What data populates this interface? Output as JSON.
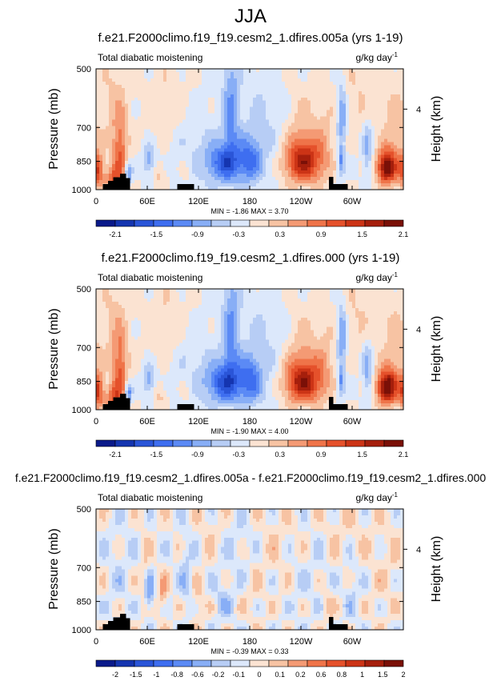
{
  "figure_title": "JJA",
  "chart_data": [
    {
      "type": "heatmap",
      "title": "f.e21.F2000climo.f19_f19.cesm2_1.dfires.005a (yrs 1-19)",
      "subtitle_left": "Total diabatic moistening",
      "units": "g/kg day",
      "units_exp": "-1",
      "ylabel": "Pressure (mb)",
      "ylabel_right": "Height (km)",
      "y_ticks": [
        "500",
        "700",
        "850",
        "1000"
      ],
      "y_right_ticks": [
        "4"
      ],
      "x_ticks": [
        "0",
        "60E",
        "120E",
        "180",
        "120W",
        "60W"
      ],
      "xlim": [
        0,
        360
      ],
      "ylim": [
        1000,
        500
      ],
      "stats": "MIN = -1.86  MAX =  3.70",
      "min": -1.86,
      "max": 3.7,
      "levels": [
        -2.4,
        -2.1,
        -1.8,
        -1.5,
        -1.2,
        -0.9,
        -0.6,
        -0.3,
        0,
        0.3,
        0.6,
        0.9,
        1.2,
        1.5,
        1.8,
        2.1,
        2.4
      ],
      "level_labels": [
        "-2.1",
        "-1.5",
        "-0.9",
        "-0.3",
        "0.3",
        "0.9",
        "1.5",
        "2.1"
      ],
      "scale": 1.0,
      "blobs": [
        {
          "lon": 150,
          "p": 860,
          "sx": 14,
          "sy": 70,
          "a": -1.4
        },
        {
          "lon": 180,
          "p": 850,
          "sx": 10,
          "sy": 80,
          "a": -1.1
        },
        {
          "lon": 158,
          "p": 640,
          "sx": 7,
          "sy": 160,
          "a": -0.9
        },
        {
          "lon": 195,
          "p": 720,
          "sx": 18,
          "sy": 170,
          "a": -0.35
        },
        {
          "lon": 112,
          "p": 800,
          "sx": 22,
          "sy": 150,
          "a": -0.35
        },
        {
          "lon": 243,
          "p": 855,
          "sx": 16,
          "sy": 75,
          "a": 1.9
        },
        {
          "lon": 243,
          "p": 700,
          "sx": 14,
          "sy": 100,
          "a": 0.4
        },
        {
          "lon": 340,
          "p": 880,
          "sx": 8,
          "sy": 60,
          "a": 2.2
        },
        {
          "lon": 350,
          "p": 760,
          "sx": 10,
          "sy": 150,
          "a": 0.5
        },
        {
          "lon": 2,
          "p": 900,
          "sx": 5,
          "sy": 60,
          "a": 1.4
        },
        {
          "lon": 28,
          "p": 820,
          "sx": 6,
          "sy": 120,
          "a": 1.1
        },
        {
          "lon": 20,
          "p": 940,
          "sx": 6,
          "sy": 50,
          "a": 1.0
        },
        {
          "lon": 38,
          "p": 910,
          "sx": 3,
          "sy": 40,
          "a": -1.1
        },
        {
          "lon": 62,
          "p": 845,
          "sx": 5,
          "sy": 50,
          "a": -0.8
        },
        {
          "lon": 288,
          "p": 650,
          "sx": 4,
          "sy": 80,
          "a": -1.0
        },
        {
          "lon": 287,
          "p": 850,
          "sx": 3,
          "sy": 50,
          "a": -1.0
        },
        {
          "lon": 318,
          "p": 800,
          "sx": 4,
          "sy": 100,
          "a": -0.7
        },
        {
          "lon": 22,
          "p": 620,
          "sx": 12,
          "sy": 140,
          "a": 0.35
        },
        {
          "lon": 85,
          "p": 620,
          "sx": 18,
          "sy": 120,
          "a": 0.3
        },
        {
          "lon": 310,
          "p": 580,
          "sx": 18,
          "sy": 90,
          "a": 0.3
        },
        {
          "lon": 268,
          "p": 760,
          "sx": 8,
          "sy": 120,
          "a": 0.35
        },
        {
          "lon": 75,
          "p": 920,
          "sx": 6,
          "sy": 50,
          "a": 0.4
        },
        {
          "lon": 105,
          "p": 900,
          "sx": 6,
          "sy": 60,
          "a": 0.3
        }
      ]
    },
    {
      "type": "heatmap",
      "title": "f.e21.F2000climo.f19_f19.cesm2_1.dfires.000 (yrs 1-19)",
      "subtitle_left": "Total diabatic moistening",
      "units": "g/kg day",
      "units_exp": "-1",
      "ylabel": "Pressure (mb)",
      "ylabel_right": "Height (km)",
      "y_ticks": [
        "500",
        "700",
        "850",
        "1000"
      ],
      "y_right_ticks": [
        "4"
      ],
      "x_ticks": [
        "0",
        "60E",
        "120E",
        "180",
        "120W",
        "60W"
      ],
      "xlim": [
        0,
        360
      ],
      "ylim": [
        1000,
        500
      ],
      "stats": "MIN = -1.90  MAX =  4.00",
      "min": -1.9,
      "max": 4.0,
      "levels": [
        -2.4,
        -2.1,
        -1.8,
        -1.5,
        -1.2,
        -0.9,
        -0.6,
        -0.3,
        0,
        0.3,
        0.6,
        0.9,
        1.2,
        1.5,
        1.8,
        2.1,
        2.4
      ],
      "level_labels": [
        "-2.1",
        "-1.5",
        "-0.9",
        "-0.3",
        "0.3",
        "0.9",
        "1.5",
        "2.1"
      ],
      "scale": 1.05,
      "blobs": [
        {
          "lon": 150,
          "p": 860,
          "sx": 14,
          "sy": 70,
          "a": -1.4
        },
        {
          "lon": 180,
          "p": 850,
          "sx": 10,
          "sy": 80,
          "a": -1.1
        },
        {
          "lon": 158,
          "p": 640,
          "sx": 7,
          "sy": 160,
          "a": -0.9
        },
        {
          "lon": 195,
          "p": 720,
          "sx": 18,
          "sy": 170,
          "a": -0.35
        },
        {
          "lon": 112,
          "p": 800,
          "sx": 22,
          "sy": 150,
          "a": -0.35
        },
        {
          "lon": 243,
          "p": 855,
          "sx": 16,
          "sy": 75,
          "a": 1.9
        },
        {
          "lon": 243,
          "p": 700,
          "sx": 14,
          "sy": 100,
          "a": 0.4
        },
        {
          "lon": 340,
          "p": 880,
          "sx": 8,
          "sy": 60,
          "a": 2.2
        },
        {
          "lon": 350,
          "p": 760,
          "sx": 10,
          "sy": 150,
          "a": 0.5
        },
        {
          "lon": 2,
          "p": 900,
          "sx": 5,
          "sy": 60,
          "a": 1.4
        },
        {
          "lon": 28,
          "p": 820,
          "sx": 6,
          "sy": 120,
          "a": 1.1
        },
        {
          "lon": 20,
          "p": 940,
          "sx": 6,
          "sy": 50,
          "a": 1.0
        },
        {
          "lon": 38,
          "p": 910,
          "sx": 3,
          "sy": 40,
          "a": -1.1
        },
        {
          "lon": 62,
          "p": 845,
          "sx": 5,
          "sy": 50,
          "a": -0.8
        },
        {
          "lon": 288,
          "p": 650,
          "sx": 4,
          "sy": 80,
          "a": -1.0
        },
        {
          "lon": 287,
          "p": 850,
          "sx": 3,
          "sy": 50,
          "a": -1.0
        },
        {
          "lon": 318,
          "p": 800,
          "sx": 4,
          "sy": 100,
          "a": -0.7
        },
        {
          "lon": 22,
          "p": 620,
          "sx": 12,
          "sy": 140,
          "a": 0.35
        },
        {
          "lon": 85,
          "p": 620,
          "sx": 18,
          "sy": 120,
          "a": 0.3
        },
        {
          "lon": 310,
          "p": 580,
          "sx": 18,
          "sy": 90,
          "a": 0.3
        },
        {
          "lon": 268,
          "p": 760,
          "sx": 8,
          "sy": 120,
          "a": 0.35
        },
        {
          "lon": 75,
          "p": 920,
          "sx": 6,
          "sy": 50,
          "a": 0.4
        },
        {
          "lon": 105,
          "p": 900,
          "sx": 6,
          "sy": 60,
          "a": 0.3
        }
      ]
    },
    {
      "type": "heatmap",
      "title": "f.e21.F2000climo.f19_f19.cesm2_1.dfires.005a - f.e21.F2000climo.f19_f19.cesm2_1.dfires.000",
      "subtitle_left": "Total diabatic moistening",
      "units": "g/kg day",
      "units_exp": "-1",
      "ylabel": "Pressure (mb)",
      "ylabel_right": "Height (km)",
      "y_ticks": [
        "500",
        "700",
        "850",
        "1000"
      ],
      "y_right_ticks": [
        "4"
      ],
      "x_ticks": [
        "0",
        "60E",
        "120E",
        "180",
        "120W",
        "60W"
      ],
      "xlim": [
        0,
        360
      ],
      "ylim": [
        1000,
        500
      ],
      "stats": "MIN = -0.39  MAX =  0.33",
      "min": -0.39,
      "max": 0.33,
      "levels": [
        -2.5,
        -2,
        -1.5,
        -1,
        -0.8,
        -0.6,
        -0.2,
        -0.1,
        0,
        0.1,
        0.2,
        0.6,
        0.8,
        1,
        1.5,
        2,
        2.5
      ],
      "level_labels": [
        "-2",
        "-1.5",
        "-1",
        "-0.8",
        "-0.6",
        "-0.2",
        "-0.1",
        "0",
        "0.1",
        "0.2",
        "0.6",
        "0.8",
        "1",
        "1.5",
        "2"
      ],
      "scale": 1.0,
      "blobs": [
        {
          "lon": 62,
          "p": 820,
          "sx": 4,
          "sy": 60,
          "a": -0.3
        },
        {
          "lon": 105,
          "p": 720,
          "sx": 5,
          "sy": 120,
          "a": -0.15
        },
        {
          "lon": 150,
          "p": 850,
          "sx": 8,
          "sy": 80,
          "a": -0.15
        },
        {
          "lon": 170,
          "p": 640,
          "sx": 10,
          "sy": 100,
          "a": -0.12
        },
        {
          "lon": 28,
          "p": 700,
          "sx": 10,
          "sy": 150,
          "a": -0.08
        },
        {
          "lon": 300,
          "p": 820,
          "sx": 6,
          "sy": 100,
          "a": -0.12
        },
        {
          "lon": 250,
          "p": 760,
          "sx": 20,
          "sy": 140,
          "a": -0.06
        },
        {
          "lon": 56,
          "p": 720,
          "sx": 3,
          "sy": 110,
          "a": 0.11
        },
        {
          "lon": 78,
          "p": 820,
          "sx": 4,
          "sy": 60,
          "a": 0.2
        },
        {
          "lon": 120,
          "p": 860,
          "sx": 5,
          "sy": 60,
          "a": 0.14
        },
        {
          "lon": 180,
          "p": 770,
          "sx": 10,
          "sy": 120,
          "a": 0.08
        },
        {
          "lon": 215,
          "p": 620,
          "sx": 14,
          "sy": 110,
          "a": 0.07
        },
        {
          "lon": 290,
          "p": 560,
          "sx": 20,
          "sy": 80,
          "a": 0.07
        },
        {
          "lon": 340,
          "p": 720,
          "sx": 12,
          "sy": 160,
          "a": 0.07
        },
        {
          "lon": 272,
          "p": 860,
          "sx": 6,
          "sy": 60,
          "a": 0.11
        },
        {
          "lon": 130,
          "p": 560,
          "sx": 10,
          "sy": 60,
          "a": 0.06
        }
      ]
    }
  ]
}
